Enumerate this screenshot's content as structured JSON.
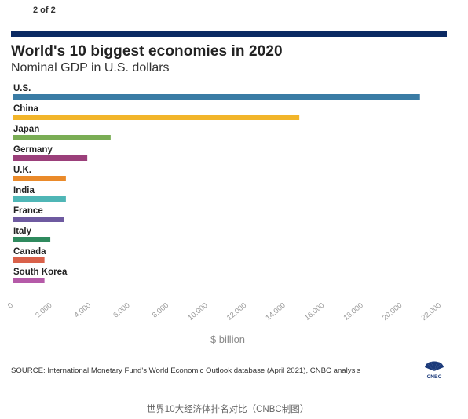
{
  "page_indicator": "2 of 2",
  "chart_data": {
    "type": "bar",
    "orientation": "horizontal",
    "title": "World's 10 biggest economies in 2020",
    "subtitle": "Nominal GDP in U.S. dollars",
    "categories": [
      "U.S.",
      "China",
      "Japan",
      "Germany",
      "U.K.",
      "India",
      "France",
      "Italy",
      "Canada",
      "South Korea"
    ],
    "values": [
      20900,
      14700,
      5000,
      3800,
      2700,
      2700,
      2600,
      1900,
      1600,
      1600
    ],
    "colors": [
      "#3a7ca5",
      "#f2b52a",
      "#7aad55",
      "#9b3f7a",
      "#ea8a2a",
      "#4fb6b6",
      "#6e5aa0",
      "#2f8a5e",
      "#d9614a",
      "#b55aa8"
    ],
    "xlabel": "$ billion",
    "ylabel": "",
    "xlim": [
      0,
      22000
    ],
    "xticks": [
      "0",
      "2,000",
      "4,000",
      "6,000",
      "8,000",
      "10,000",
      "12,000",
      "14,000",
      "16,000",
      "18,000",
      "20,000",
      "22,000"
    ],
    "grid": false,
    "legend": "none"
  },
  "source": "SOURCE: International Monetary Fund's World Economic Outlook database (April 2021), CNBC analysis",
  "logo_text": "CNBC",
  "caption": "世界10大经济体排名对比（CNBC制图）",
  "colors": {
    "top_rule": "#0b2a63"
  }
}
